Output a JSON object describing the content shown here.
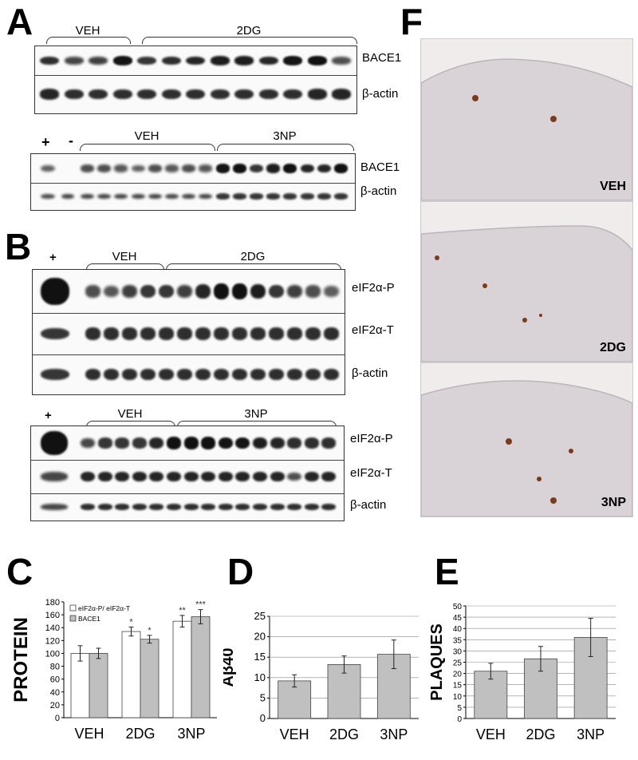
{
  "panels": {
    "A": {
      "letter": "A",
      "blot1": {
        "groups": [
          "VEH",
          "2DG"
        ],
        "labels": [
          "BACE1",
          "β-actin"
        ]
      },
      "blot2": {
        "controls": [
          "+",
          "-"
        ],
        "groups": [
          "VEH",
          "3NP"
        ],
        "labels": [
          "BACE1",
          "β-actin"
        ]
      }
    },
    "B": {
      "letter": "B",
      "blot1": {
        "control": "+",
        "groups": [
          "VEH",
          "2DG"
        ],
        "labels": [
          "eIF2α-P",
          "eIF2α-T",
          "β-actin"
        ]
      },
      "blot2": {
        "control": "+",
        "groups": [
          "VEH",
          "3NP"
        ],
        "labels": [
          "eIF2α-P",
          "eIF2α-T",
          "β-actin"
        ]
      }
    },
    "F": {
      "letter": "F",
      "labels": [
        "VEH",
        "2DG",
        "3NP"
      ]
    }
  },
  "chart_data": [
    {
      "panel": "C",
      "type": "bar",
      "ylabel": "PROTEIN",
      "categories": [
        "VEH",
        "2DG",
        "3NP"
      ],
      "ylim": [
        0,
        180
      ],
      "yticks": [
        "0",
        "20",
        "40",
        "60",
        "80",
        "100",
        "120",
        "140",
        "160",
        "180"
      ],
      "series": [
        {
          "name": "eIF2α-P/ eIF2α-T",
          "color": "#ffffff",
          "values": [
            100,
            134,
            150
          ],
          "errors": [
            12,
            7,
            9
          ],
          "sig": [
            "",
            "*",
            "**"
          ]
        },
        {
          "name": "BACE1",
          "color": "#bfbfbf",
          "values": [
            100,
            122,
            157
          ],
          "errors": [
            8,
            6,
            11
          ],
          "sig": [
            "",
            "*",
            "***"
          ]
        }
      ],
      "legend": "top-left"
    },
    {
      "panel": "D",
      "type": "bar",
      "ylabel": "Aβ40",
      "categories": [
        "VEH",
        "2DG",
        "3NP"
      ],
      "ylim": [
        0,
        25
      ],
      "yticks": [
        "0",
        "5",
        "10",
        "15",
        "20",
        "25"
      ],
      "series": [
        {
          "color": "#c0c0c0",
          "values": [
            9.2,
            13.2,
            15.7
          ],
          "errors": [
            1.5,
            2.1,
            3.5
          ]
        }
      ]
    },
    {
      "panel": "E",
      "type": "bar",
      "ylabel": "PLAQUES",
      "categories": [
        "VEH",
        "2DG",
        "3NP"
      ],
      "ylim": [
        0,
        50
      ],
      "yticks": [
        "0",
        "5",
        "10",
        "15",
        "20",
        "25",
        "30",
        "35",
        "40",
        "45",
        "50"
      ],
      "series": [
        {
          "color": "#c0c0c0",
          "values": [
            21,
            26.5,
            36
          ],
          "errors": [
            3.5,
            5.5,
            8.5
          ]
        }
      ]
    }
  ]
}
